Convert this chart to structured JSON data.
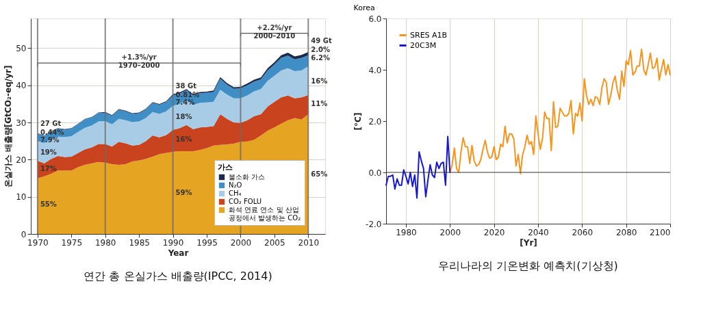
{
  "chart_data": [
    {
      "type": "area",
      "stacked": true,
      "xlabel": "Year",
      "ylabel": "온실가스 배출량[GtCO₂-eq/yr]",
      "legend_title": "가스",
      "legend": "bottom right",
      "grid": "y",
      "xlim": [
        1969,
        2012.5
      ],
      "xticks": [
        1970,
        1975,
        1980,
        1985,
        1990,
        1995,
        2000,
        2005,
        2010
      ],
      "ylim": [
        0,
        58
      ],
      "yticks": [
        0,
        10,
        20,
        30,
        40,
        50
      ],
      "x": [
        1970,
        1971,
        1972,
        1973,
        1974,
        1975,
        1976,
        1977,
        1978,
        1979,
        1980,
        1981,
        1982,
        1983,
        1984,
        1985,
        1986,
        1987,
        1988,
        1989,
        1990,
        1991,
        1992,
        1993,
        1994,
        1995,
        1996,
        1997,
        1998,
        1999,
        2000,
        2001,
        2002,
        2003,
        2004,
        2005,
        2006,
        2007,
        2008,
        2009,
        2010
      ],
      "series": [
        {
          "name": "화석 연료 연소 및 산업 공정에서 발생하는 CO₂",
          "color": "#e5a421",
          "values": [
            15,
            15.5,
            16.2,
            17.1,
            17.1,
            17.1,
            18,
            18.6,
            19,
            19.4,
            19.2,
            18.8,
            18.6,
            18.8,
            19.5,
            19.8,
            20.2,
            20.8,
            21.5,
            21.8,
            22.1,
            22.3,
            22.3,
            22.3,
            22.6,
            23.1,
            23.8,
            24,
            24.1,
            24.3,
            24.8,
            24.9,
            25.3,
            26.5,
            27.8,
            28.7,
            29.7,
            30.6,
            31.2,
            30.8,
            32.2
          ]
        },
        {
          "name": "CO₂ FOLU",
          "color": "#c8431e",
          "values": [
            4.7,
            3.5,
            4.0,
            3.9,
            3.6,
            3.7,
            3.8,
            4.2,
            4.3,
            4.8,
            5.0,
            4.7,
            6.2,
            5.6,
            4.3,
            4.2,
            4.8,
            5.7,
            4.5,
            4.8,
            5.9,
            6.2,
            7.0,
            5.9,
            6.1,
            5.7,
            5.2,
            8.2,
            6.9,
            5.7,
            5.1,
            5.7,
            6.4,
            5.7,
            6.5,
            6.9,
            7.1,
            6.7,
            5.3,
            6.0,
            5.2
          ]
        },
        {
          "name": "CH₄",
          "color": "#a9cce6",
          "values": [
            5.3,
            5.5,
            5.3,
            5.2,
            5.4,
            5.5,
            5.7,
            5.8,
            5.9,
            6.1,
            6.2,
            6.0,
            6.2,
            6.2,
            6.3,
            6.3,
            6.2,
            6.3,
            6.3,
            6.4,
            6.5,
            6.5,
            6.7,
            6.5,
            6.6,
            6.6,
            6.6,
            6.6,
            6.5,
            6.5,
            6.6,
            6.7,
            6.7,
            6.8,
            6.9,
            7.0,
            7.2,
            7.3,
            7.3,
            7.2,
            7.7
          ]
        },
        {
          "name": "N₂O",
          "color": "#3f8fc6",
          "values": [
            2.0,
            1.9,
            2.1,
            2.2,
            2.0,
            2.1,
            2.1,
            2.3,
            2.2,
            2.3,
            2.2,
            2.3,
            2.4,
            2.4,
            2.2,
            2.2,
            2.3,
            2.5,
            2.5,
            2.5,
            2.8,
            2.8,
            2.7,
            2.6,
            2.6,
            2.6,
            2.6,
            3.0,
            2.7,
            2.6,
            2.7,
            2.7,
            2.6,
            2.6,
            2.8,
            3.0,
            3.4,
            3.4,
            3.2,
            3.4,
            3.0
          ]
        },
        {
          "name": "불소화 가스",
          "color": "#1b2a4a",
          "values": [
            0.1,
            0.1,
            0.1,
            0.1,
            0.1,
            0.1,
            0.1,
            0.1,
            0.1,
            0.1,
            0.2,
            0.2,
            0.2,
            0.2,
            0.2,
            0.2,
            0.2,
            0.2,
            0.2,
            0.2,
            0.3,
            0.3,
            0.3,
            0.3,
            0.3,
            0.3,
            0.4,
            0.4,
            0.4,
            0.4,
            0.4,
            0.5,
            0.5,
            0.5,
            0.6,
            0.6,
            0.7,
            0.8,
            0.8,
            0.8,
            0.9
          ]
        },
        {
          "type": "line",
          "color": "#555555",
          "x": [
            1970,
            1970,
            2000,
            2000
          ],
          "values": [
            45.2,
            46,
            46,
            45.2
          ]
        },
        {
          "type": "line",
          "color": "#555555",
          "x": [
            2000,
            2000,
            2010,
            2010
          ],
          "values": [
            53.2,
            54,
            54,
            53.2
          ]
        }
      ],
      "ref_lines": [
        {
          "axis": "x",
          "value": 1970,
          "color": "#6b6b6b"
        },
        {
          "axis": "x",
          "value": 1980,
          "color": "#6b6b6b"
        },
        {
          "axis": "x",
          "value": 1990,
          "color": "#6b6b6b"
        },
        {
          "axis": "x",
          "value": 2000,
          "color": "#6b6b6b"
        },
        {
          "axis": "x",
          "value": 2010,
          "color": "#6b6b6b"
        }
      ],
      "annotations": [
        {
          "text": "+1.3%/yr\n1970–2000",
          "x": 1985,
          "y": 46
        },
        {
          "text": "+2.2%/yr\n2000–2010",
          "x": 2005,
          "y": 54
        },
        {
          "text": "27 Gt",
          "x": 1970,
          "y": 29.6
        },
        {
          "text": "38 Gt",
          "x": 1990,
          "y": 39.8
        },
        {
          "text": "49 Gt",
          "x": 2010,
          "y": 52
        },
        {
          "text": "55%",
          "x": 1970,
          "y": 8
        },
        {
          "text": "17%",
          "x": 1970,
          "y": 17.5
        },
        {
          "text": "19%",
          "x": 1970,
          "y": 22
        },
        {
          "text": "7.9%",
          "x": 1970,
          "y": 25.3
        },
        {
          "text": "0.44%",
          "x": 1970,
          "y": 27.3
        },
        {
          "text": "59%",
          "x": 1990,
          "y": 11
        },
        {
          "text": "16%",
          "x": 1990,
          "y": 25.5
        },
        {
          "text": "18%",
          "x": 1990,
          "y": 31.5
        },
        {
          "text": "7.4%",
          "x": 1990,
          "y": 35.3
        },
        {
          "text": "0.81%",
          "x": 1990,
          "y": 37.3
        },
        {
          "text": "65%",
          "x": 2010,
          "y": 16
        },
        {
          "text": "11%",
          "x": 2010,
          "y": 35
        },
        {
          "text": "16%",
          "x": 2010,
          "y": 41
        },
        {
          "text": "6.2%",
          "x": 2010,
          "y": 47.4
        },
        {
          "text": "2.0%",
          "x": 2010,
          "y": 49.6
        },
        "연간 총 온실가스 배출량(IPCC, 2014)"
      ]
    },
    {
      "type": "line",
      "title": "Korea",
      "xlabel": "[Yr]",
      "ylabel": "[°C]",
      "legend": "top left",
      "grid": "x",
      "line_style": "solid",
      "xlim": [
        1971,
        2100
      ],
      "xticks": [
        1980,
        2000,
        2020,
        2040,
        2060,
        2080,
        2100
      ],
      "ylim": [
        -2,
        6
      ],
      "yticks": [
        {
          "value": -2,
          "label": "-2.0"
        },
        {
          "value": 0,
          "label": "0.0"
        },
        {
          "value": 2,
          "label": "2.0"
        },
        {
          "value": 4,
          "label": "4.0"
        },
        {
          "value": 6,
          "label": "6.0"
        }
      ],
      "series": [
        {
          "name": "SRES A1B",
          "color": "#f7941d",
          "x": [
            2000,
            2001,
            2002,
            2003,
            2004,
            2005,
            2006,
            2007,
            2008,
            2009,
            2010,
            2011,
            2012,
            2013,
            2014,
            2015,
            2016,
            2017,
            2018,
            2019,
            2020,
            2021,
            2022,
            2023,
            2024,
            2025,
            2026,
            2027,
            2028,
            2029,
            2030,
            2031,
            2032,
            2033,
            2034,
            2035,
            2036,
            2037,
            2038,
            2039,
            2040,
            2041,
            2042,
            2043,
            2044,
            2045,
            2046,
            2047,
            2048,
            2049,
            2050,
            2051,
            2052,
            2053,
            2054,
            2055,
            2056,
            2057,
            2058,
            2059,
            2060,
            2061,
            2062,
            2063,
            2064,
            2065,
            2066,
            2067,
            2068,
            2069,
            2070,
            2071,
            2072,
            2073,
            2074,
            2075,
            2076,
            2077,
            2078,
            2079,
            2080,
            2081,
            2082,
            2083,
            2084,
            2085,
            2086,
            2087,
            2088,
            2089,
            2090,
            2091,
            2092,
            2093,
            2094,
            2095,
            2096,
            2097,
            2098,
            2099,
            2100
          ],
          "values": [
            0.0,
            0.3,
            0.95,
            0.15,
            0.0,
            0.8,
            1.35,
            1.0,
            1.0,
            0.35,
            1.05,
            0.45,
            0.25,
            0.3,
            0.5,
            0.9,
            1.25,
            0.8,
            0.55,
            0.6,
            1.0,
            0.5,
            0.6,
            1.1,
            1.0,
            1.8,
            1.15,
            1.5,
            1.5,
            1.3,
            0.25,
            0.7,
            -0.05,
            0.7,
            1.0,
            1.45,
            1.1,
            1.2,
            0.7,
            2.2,
            1.5,
            0.9,
            1.3,
            2.35,
            2.1,
            2.1,
            0.85,
            2.75,
            1.75,
            1.8,
            2.5,
            2.35,
            2.2,
            2.2,
            2.3,
            2.8,
            1.5,
            2.3,
            2.2,
            2.7,
            2.0,
            3.65,
            3.0,
            2.65,
            2.85,
            2.6,
            2.95,
            2.9,
            2.65,
            3.3,
            3.65,
            3.5,
            2.65,
            3.0,
            3.5,
            3.75,
            3.2,
            2.85,
            3.95,
            3.35,
            4.35,
            4.2,
            4.75,
            3.8,
            3.9,
            4.15,
            4.15,
            4.8,
            4.0,
            3.8,
            4.2,
            4.65,
            4.05,
            4.1,
            4.45,
            3.6,
            4.0,
            4.4,
            3.8,
            4.2,
            3.8
          ]
        },
        {
          "name": "20C3M",
          "color": "#1515d8",
          "x": [
            1971,
            1972,
            1973,
            1974,
            1975,
            1976,
            1977,
            1978,
            1979,
            1980,
            1981,
            1982,
            1983,
            1984,
            1985,
            1986,
            1987,
            1988,
            1989,
            1990,
            1991,
            1992,
            1993,
            1994,
            1995,
            1996,
            1997,
            1998,
            1999,
            2000
          ],
          "values": [
            -0.5,
            -0.15,
            -0.15,
            -0.1,
            -0.65,
            -0.25,
            -0.5,
            -0.5,
            0.1,
            -0.15,
            -0.45,
            0.0,
            -0.55,
            -0.1,
            -1.0,
            0.8,
            0.45,
            0.15,
            -0.95,
            -0.3,
            0.3,
            -0.1,
            -0.2,
            0.4,
            0.15,
            0.35,
            0.4,
            -0.5,
            1.4,
            0.0
          ]
        }
      ],
      "ref_lines": [
        {
          "axis": "y",
          "value": 0,
          "color": "#333333"
        }
      ],
      "annotations": [
        "우리나라의 기온변화 예측치(기상청)"
      ]
    }
  ]
}
